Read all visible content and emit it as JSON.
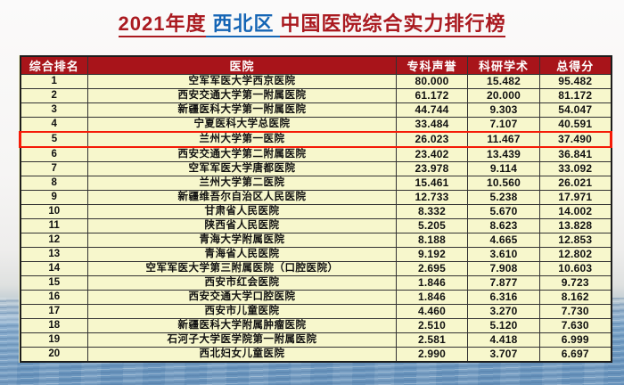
{
  "title": {
    "segments": [
      {
        "text": "2021年度",
        "color": "#aa1a20"
      },
      {
        "text": "西北区",
        "color": "#1565b5"
      },
      {
        "text": "中国医院综合实力排行榜",
        "color": "#aa1a20"
      }
    ]
  },
  "chart_data": {
    "type": "table",
    "title": "2021年度 西北区 中国医院综合实力排行榜",
    "columns": [
      "综合排名",
      "医院",
      "专科声誉",
      "科研学术",
      "总得分"
    ],
    "highlighted_rank": "5",
    "rows": [
      {
        "rank": "1",
        "hospital": "空军军医大学西京医院",
        "specialty_reputation": "80.000",
        "research_academic": "15.482",
        "total_score": "95.482"
      },
      {
        "rank": "2",
        "hospital": "西安交通大学第一附属医院",
        "specialty_reputation": "61.172",
        "research_academic": "20.000",
        "total_score": "81.172"
      },
      {
        "rank": "3",
        "hospital": "新疆医科大学第一附属医院",
        "specialty_reputation": "44.744",
        "research_academic": "9.303",
        "total_score": "54.047"
      },
      {
        "rank": "4",
        "hospital": "宁夏医科大学总医院",
        "specialty_reputation": "33.484",
        "research_academic": "7.107",
        "total_score": "40.591"
      },
      {
        "rank": "5",
        "hospital": "兰州大学第一医院",
        "specialty_reputation": "26.023",
        "research_academic": "11.467",
        "total_score": "37.490"
      },
      {
        "rank": "6",
        "hospital": "西安交通大学第二附属医院",
        "specialty_reputation": "23.402",
        "research_academic": "13.439",
        "total_score": "36.841"
      },
      {
        "rank": "7",
        "hospital": "空军军医大学唐都医院",
        "specialty_reputation": "23.978",
        "research_academic": "9.114",
        "total_score": "33.092"
      },
      {
        "rank": "8",
        "hospital": "兰州大学第二医院",
        "specialty_reputation": "15.461",
        "research_academic": "10.560",
        "total_score": "26.021"
      },
      {
        "rank": "9",
        "hospital": "新疆维吾尔自治区人民医院",
        "specialty_reputation": "12.733",
        "research_academic": "5.238",
        "total_score": "17.971"
      },
      {
        "rank": "10",
        "hospital": "甘肃省人民医院",
        "specialty_reputation": "8.332",
        "research_academic": "5.670",
        "total_score": "14.002"
      },
      {
        "rank": "11",
        "hospital": "陕西省人民医院",
        "specialty_reputation": "5.205",
        "research_academic": "8.623",
        "total_score": "13.828"
      },
      {
        "rank": "12",
        "hospital": "青海大学附属医院",
        "specialty_reputation": "8.188",
        "research_academic": "4.665",
        "total_score": "12.853"
      },
      {
        "rank": "13",
        "hospital": "青海省人民医院",
        "specialty_reputation": "9.192",
        "research_academic": "3.610",
        "total_score": "12.802"
      },
      {
        "rank": "14",
        "hospital": "空军军医大学第三附属医院（口腔医院）",
        "specialty_reputation": "2.695",
        "research_academic": "7.908",
        "total_score": "10.603"
      },
      {
        "rank": "15",
        "hospital": "西安市红会医院",
        "specialty_reputation": "1.846",
        "research_academic": "7.877",
        "total_score": "9.723"
      },
      {
        "rank": "16",
        "hospital": "西安交通大学口腔医院",
        "specialty_reputation": "1.846",
        "research_academic": "6.316",
        "total_score": "8.162"
      },
      {
        "rank": "17",
        "hospital": "西安市儿童医院",
        "specialty_reputation": "4.460",
        "research_academic": "3.270",
        "total_score": "7.730"
      },
      {
        "rank": "18",
        "hospital": "新疆医科大学附属肿瘤医院",
        "specialty_reputation": "2.510",
        "research_academic": "5.120",
        "total_score": "7.630"
      },
      {
        "rank": "19",
        "hospital": "石河子大学医学院第一附属医院",
        "specialty_reputation": "2.581",
        "research_academic": "4.418",
        "total_score": "6.999"
      },
      {
        "rank": "20",
        "hospital": "西北妇女儿童医院",
        "specialty_reputation": "2.990",
        "research_academic": "3.707",
        "total_score": "6.697"
      }
    ]
  },
  "colors": {
    "header_bg": "#a8141a",
    "cell_bg": "#f7f7cc",
    "border": "#333233",
    "highlight": "#f51b07",
    "title_red": "#aa1a20",
    "title_blue": "#1565b5"
  }
}
